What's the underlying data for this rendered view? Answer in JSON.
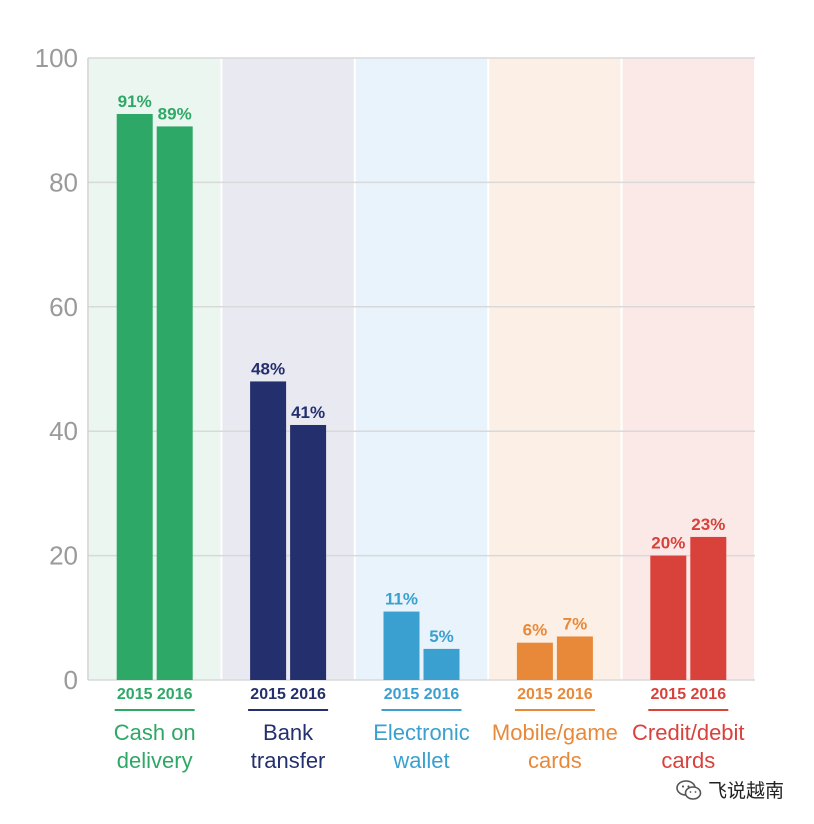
{
  "chart_data": {
    "type": "bar",
    "categories": [
      {
        "line1": "Cash on",
        "line2": "delivery",
        "color": "#2ea866",
        "bg": "#eaf6ef"
      },
      {
        "line1": "Bank",
        "line2": "transfer",
        "color": "#24306e",
        "bg": "#e9e9f2"
      },
      {
        "line1": "Electronic",
        "line2": "wallet",
        "color": "#3aa0cf",
        "bg": "#e8f3fb"
      },
      {
        "line1": "Mobile/game",
        "line2": "cards",
        "color": "#e8893a",
        "bg": "#fcf0e6"
      },
      {
        "line1": "Credit/debit",
        "line2": "cards",
        "color": "#d9413b",
        "bg": "#fbe9e8"
      }
    ],
    "series": [
      {
        "name": "2015",
        "values": [
          91,
          48,
          11,
          6,
          20
        ],
        "labels": [
          "91%",
          "48%",
          "11%",
          "6%",
          "20%"
        ]
      },
      {
        "name": "2016",
        "values": [
          89,
          41,
          5,
          7,
          23
        ],
        "labels": [
          "89%",
          "41%",
          "5%",
          "7%",
          "23%"
        ]
      }
    ],
    "ylim": [
      0,
      100
    ],
    "yticks": [
      0,
      20,
      40,
      60,
      80,
      100
    ],
    "grid": true
  },
  "watermark": {
    "text": "飞说越南",
    "icon": "wechat-icon"
  }
}
